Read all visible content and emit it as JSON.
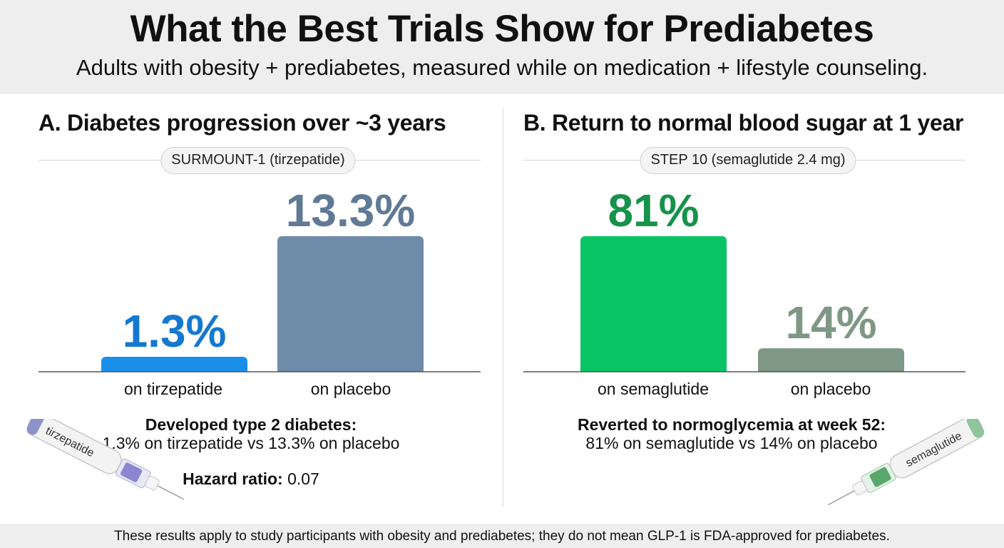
{
  "header": {
    "title": "What the Best Trials Show for Prediabetes",
    "subtitle": "Adults with obesity + prediabetes, measured while on medication + lifestyle counseling."
  },
  "panels": [
    {
      "title": "A.  Diabetes progression over ~3 years",
      "trial": "SURMOUNT-1 (tirzepatide)",
      "summary_heading": "Developed type 2 diabetes:",
      "summary_text": "1.3% on tirzepatide vs 13.3% on placebo",
      "hazard_label": "Hazard ratio:",
      "hazard_value": "0.07",
      "pen_label": "tirzepatide",
      "pen_accent": "#7b74c9"
    },
    {
      "title": "B.  Return to normal blood sugar at 1 year",
      "trial": "STEP 10 (semaglutide 2.4 mg)",
      "summary_heading": "Reverted to normoglycemia at week 52:",
      "summary_text": "81% on semaglutide vs 14% on placebo",
      "pen_label": "semaglutide",
      "pen_accent": "#3f9a55"
    }
  ],
  "chart_data": [
    {
      "type": "bar",
      "title": "A.  Diabetes progression over ~3 years",
      "categories": [
        "on tirzepatide",
        "on placebo"
      ],
      "values": [
        1.3,
        13.3
      ],
      "value_labels": [
        "1.3%",
        "13.3%"
      ],
      "colors": [
        "#1a8fea",
        "#6e8ca9"
      ],
      "label_colors": [
        "#1479cf",
        "#607a96"
      ],
      "ylim": [
        0,
        13.3
      ],
      "grid": false,
      "legend": "none"
    },
    {
      "type": "bar",
      "title": "B.  Return to normal blood sugar at 1 year",
      "categories": [
        "on semaglutide",
        "on placebo"
      ],
      "values": [
        81,
        14
      ],
      "value_labels": [
        "81%",
        "14%"
      ],
      "colors": [
        "#09c464",
        "#7f9885"
      ],
      "label_colors": [
        "#17924b",
        "#7f9885"
      ],
      "ylim": [
        0,
        81
      ],
      "grid": false,
      "legend": "none"
    }
  ],
  "footer": "These results apply to study participants with obesity and prediabetes; they do not mean GLP-1 is FDA-approved for prediabetes."
}
